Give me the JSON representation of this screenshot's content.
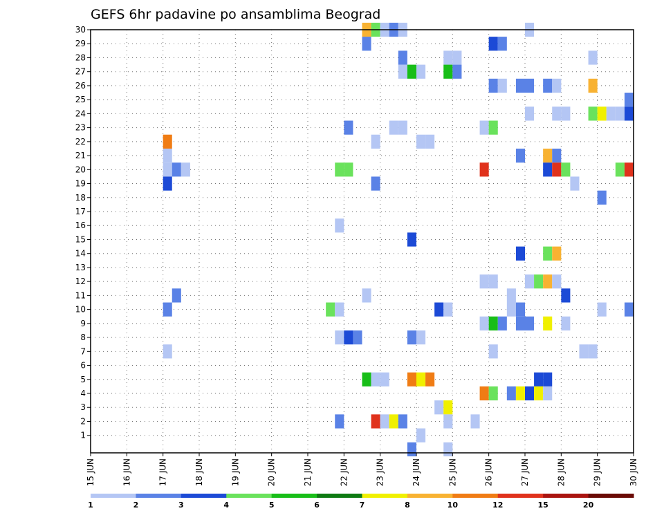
{
  "chart_data": {
    "type": "heatmap",
    "title": "GEFS 6hr padavine po ansamblima Beograd",
    "y_ticks": [
      1,
      2,
      3,
      4,
      5,
      6,
      7,
      8,
      9,
      10,
      11,
      12,
      13,
      14,
      15,
      16,
      17,
      18,
      19,
      20,
      21,
      22,
      23,
      24,
      25,
      26,
      27,
      28,
      29,
      30
    ],
    "x_ticks": [
      "15 JUN",
      "16 JUN",
      "17 JUN",
      "18 JUN",
      "19 JUN",
      "20 JUN",
      "21 JUN",
      "22 JUN",
      "23 JUN",
      "24 JUN",
      "25 JUN",
      "26 JUN",
      "27 JUN",
      "28 JUN",
      "29 JUN",
      "30 JUN"
    ],
    "x_range_days": [
      15,
      30
    ],
    "y_range": [
      0,
      30
    ],
    "time_step_hours": 6,
    "grid": true,
    "legend": {
      "position": "bottom",
      "labels": [
        "1",
        "2",
        "3",
        "4",
        "5",
        "6",
        "7",
        "8",
        "10",
        "12",
        "15",
        "20"
      ],
      "colors": [
        "#b4c6f4",
        "#5a82e6",
        "#1c4ad6",
        "#6ae25c",
        "#18be18",
        "#0e7a12",
        "#f0f000",
        "#f8b232",
        "#f07c14",
        "#e0321c",
        "#aa1410",
        "#6a0a06"
      ]
    },
    "cells": [
      [
        30,
        22.5,
        "#f8b232"
      ],
      [
        30,
        22.75,
        "#6ae25c"
      ],
      [
        30,
        23.0,
        "#b4c6f4"
      ],
      [
        30,
        23.25,
        "#5a82e6"
      ],
      [
        30,
        23.5,
        "#b4c6f4"
      ],
      [
        30,
        27.0,
        "#b4c6f4"
      ],
      [
        29,
        22.5,
        "#5a82e6"
      ],
      [
        29,
        26.0,
        "#1c4ad6"
      ],
      [
        29,
        26.25,
        "#5a82e6"
      ],
      [
        28,
        23.5,
        "#5a82e6"
      ],
      [
        28,
        24.75,
        "#b4c6f4"
      ],
      [
        28,
        25.0,
        "#b4c6f4"
      ],
      [
        28,
        28.75,
        "#b4c6f4"
      ],
      [
        27,
        23.5,
        "#b4c6f4"
      ],
      [
        27,
        23.75,
        "#18be18"
      ],
      [
        27,
        24.0,
        "#b4c6f4"
      ],
      [
        27,
        24.75,
        "#18be18"
      ],
      [
        27,
        25.0,
        "#5a82e6"
      ],
      [
        26,
        26.0,
        "#5a82e6"
      ],
      [
        26,
        26.25,
        "#b4c6f4"
      ],
      [
        26,
        26.75,
        "#5a82e6"
      ],
      [
        26,
        27.0,
        "#5a82e6"
      ],
      [
        26,
        27.5,
        "#5a82e6"
      ],
      [
        26,
        27.75,
        "#b4c6f4"
      ],
      [
        26,
        28.75,
        "#f8b232"
      ],
      [
        25,
        29.75,
        "#5a82e6"
      ],
      [
        24,
        27.0,
        "#b4c6f4"
      ],
      [
        24,
        27.75,
        "#b4c6f4"
      ],
      [
        24,
        28.0,
        "#b4c6f4"
      ],
      [
        24,
        28.75,
        "#6ae25c"
      ],
      [
        24,
        29.0,
        "#f0f000"
      ],
      [
        24,
        29.25,
        "#b4c6f4"
      ],
      [
        24,
        29.5,
        "#b4c6f4"
      ],
      [
        24,
        29.75,
        "#1c4ad6"
      ],
      [
        23,
        22.0,
        "#5a82e6"
      ],
      [
        23,
        23.25,
        "#b4c6f4"
      ],
      [
        23,
        23.5,
        "#b4c6f4"
      ],
      [
        23,
        25.75,
        "#b4c6f4"
      ],
      [
        23,
        26.0,
        "#6ae25c"
      ],
      [
        22,
        17.0,
        "#f07c14"
      ],
      [
        22,
        22.75,
        "#b4c6f4"
      ],
      [
        22,
        24.0,
        "#b4c6f4"
      ],
      [
        22,
        24.25,
        "#b4c6f4"
      ],
      [
        21,
        17.0,
        "#b4c6f4"
      ],
      [
        21,
        26.75,
        "#5a82e6"
      ],
      [
        21,
        27.5,
        "#f8b232"
      ],
      [
        21,
        27.75,
        "#5a82e6"
      ],
      [
        20,
        17.0,
        "#b4c6f4"
      ],
      [
        20,
        17.25,
        "#5a82e6"
      ],
      [
        20,
        17.5,
        "#b4c6f4"
      ],
      [
        20,
        21.75,
        "#6ae25c"
      ],
      [
        20,
        22.0,
        "#6ae25c"
      ],
      [
        20,
        25.75,
        "#e0321c"
      ],
      [
        20,
        27.5,
        "#1c4ad6"
      ],
      [
        20,
        27.75,
        "#e0321c"
      ],
      [
        20,
        28.0,
        "#6ae25c"
      ],
      [
        20,
        29.5,
        "#6ae25c"
      ],
      [
        20,
        29.75,
        "#e0321c"
      ],
      [
        19,
        17.0,
        "#1c4ad6"
      ],
      [
        19,
        22.75,
        "#5a82e6"
      ],
      [
        19,
        28.25,
        "#b4c6f4"
      ],
      [
        18,
        29.0,
        "#5a82e6"
      ],
      [
        16,
        21.75,
        "#b4c6f4"
      ],
      [
        15,
        23.75,
        "#1c4ad6"
      ],
      [
        14,
        26.75,
        "#1c4ad6"
      ],
      [
        14,
        27.5,
        "#6ae25c"
      ],
      [
        14,
        27.75,
        "#f8b232"
      ],
      [
        12,
        25.75,
        "#b4c6f4"
      ],
      [
        12,
        26.0,
        "#b4c6f4"
      ],
      [
        12,
        27.0,
        "#b4c6f4"
      ],
      [
        12,
        27.25,
        "#6ae25c"
      ],
      [
        12,
        27.5,
        "#f8b232"
      ],
      [
        12,
        27.75,
        "#b4c6f4"
      ],
      [
        11,
        17.25,
        "#5a82e6"
      ],
      [
        11,
        22.5,
        "#b4c6f4"
      ],
      [
        11,
        26.5,
        "#b4c6f4"
      ],
      [
        11,
        28.0,
        "#1c4ad6"
      ],
      [
        10,
        17.0,
        "#5a82e6"
      ],
      [
        10,
        21.5,
        "#6ae25c"
      ],
      [
        10,
        21.75,
        "#b4c6f4"
      ],
      [
        10,
        24.5,
        "#1c4ad6"
      ],
      [
        10,
        24.75,
        "#b4c6f4"
      ],
      [
        10,
        26.5,
        "#b4c6f4"
      ],
      [
        10,
        26.75,
        "#5a82e6"
      ],
      [
        10,
        29.0,
        "#b4c6f4"
      ],
      [
        10,
        29.75,
        "#5a82e6"
      ],
      [
        9,
        25.75,
        "#b4c6f4"
      ],
      [
        9,
        26.0,
        "#18be18"
      ],
      [
        9,
        26.25,
        "#5a82e6"
      ],
      [
        9,
        26.75,
        "#5a82e6"
      ],
      [
        9,
        27.0,
        "#5a82e6"
      ],
      [
        9,
        27.5,
        "#f0f000"
      ],
      [
        9,
        28.0,
        "#b4c6f4"
      ],
      [
        8,
        21.75,
        "#b4c6f4"
      ],
      [
        8,
        22.0,
        "#1c4ad6"
      ],
      [
        8,
        22.25,
        "#5a82e6"
      ],
      [
        8,
        23.75,
        "#5a82e6"
      ],
      [
        8,
        24.0,
        "#b4c6f4"
      ],
      [
        7,
        17.0,
        "#b4c6f4"
      ],
      [
        7,
        26.0,
        "#b4c6f4"
      ],
      [
        7,
        28.5,
        "#b4c6f4"
      ],
      [
        7,
        28.75,
        "#b4c6f4"
      ],
      [
        5,
        22.5,
        "#18be18"
      ],
      [
        5,
        22.75,
        "#b4c6f4"
      ],
      [
        5,
        23.0,
        "#b4c6f4"
      ],
      [
        5,
        23.75,
        "#f07c14"
      ],
      [
        5,
        24.0,
        "#f0f000"
      ],
      [
        5,
        24.25,
        "#f07c14"
      ],
      [
        5,
        27.25,
        "#1c4ad6"
      ],
      [
        5,
        27.5,
        "#1c4ad6"
      ],
      [
        4,
        25.75,
        "#f07c14"
      ],
      [
        4,
        26.0,
        "#6ae25c"
      ],
      [
        4,
        26.5,
        "#5a82e6"
      ],
      [
        4,
        26.75,
        "#f0f000"
      ],
      [
        4,
        27.0,
        "#1c4ad6"
      ],
      [
        4,
        27.25,
        "#f0f000"
      ],
      [
        4,
        27.5,
        "#b4c6f4"
      ],
      [
        3,
        24.5,
        "#b4c6f4"
      ],
      [
        3,
        24.75,
        "#f0f000"
      ],
      [
        2,
        21.75,
        "#5a82e6"
      ],
      [
        2,
        22.75,
        "#e0321c"
      ],
      [
        2,
        23.0,
        "#b4c6f4"
      ],
      [
        2,
        23.25,
        "#f0f000"
      ],
      [
        2,
        23.5,
        "#5a82e6"
      ],
      [
        2,
        24.75,
        "#b4c6f4"
      ],
      [
        2,
        25.5,
        "#b4c6f4"
      ],
      [
        1,
        24.0,
        "#b4c6f4"
      ],
      [
        0,
        23.75,
        "#5a82e6"
      ],
      [
        0,
        24.75,
        "#b4c6f4"
      ]
    ]
  }
}
